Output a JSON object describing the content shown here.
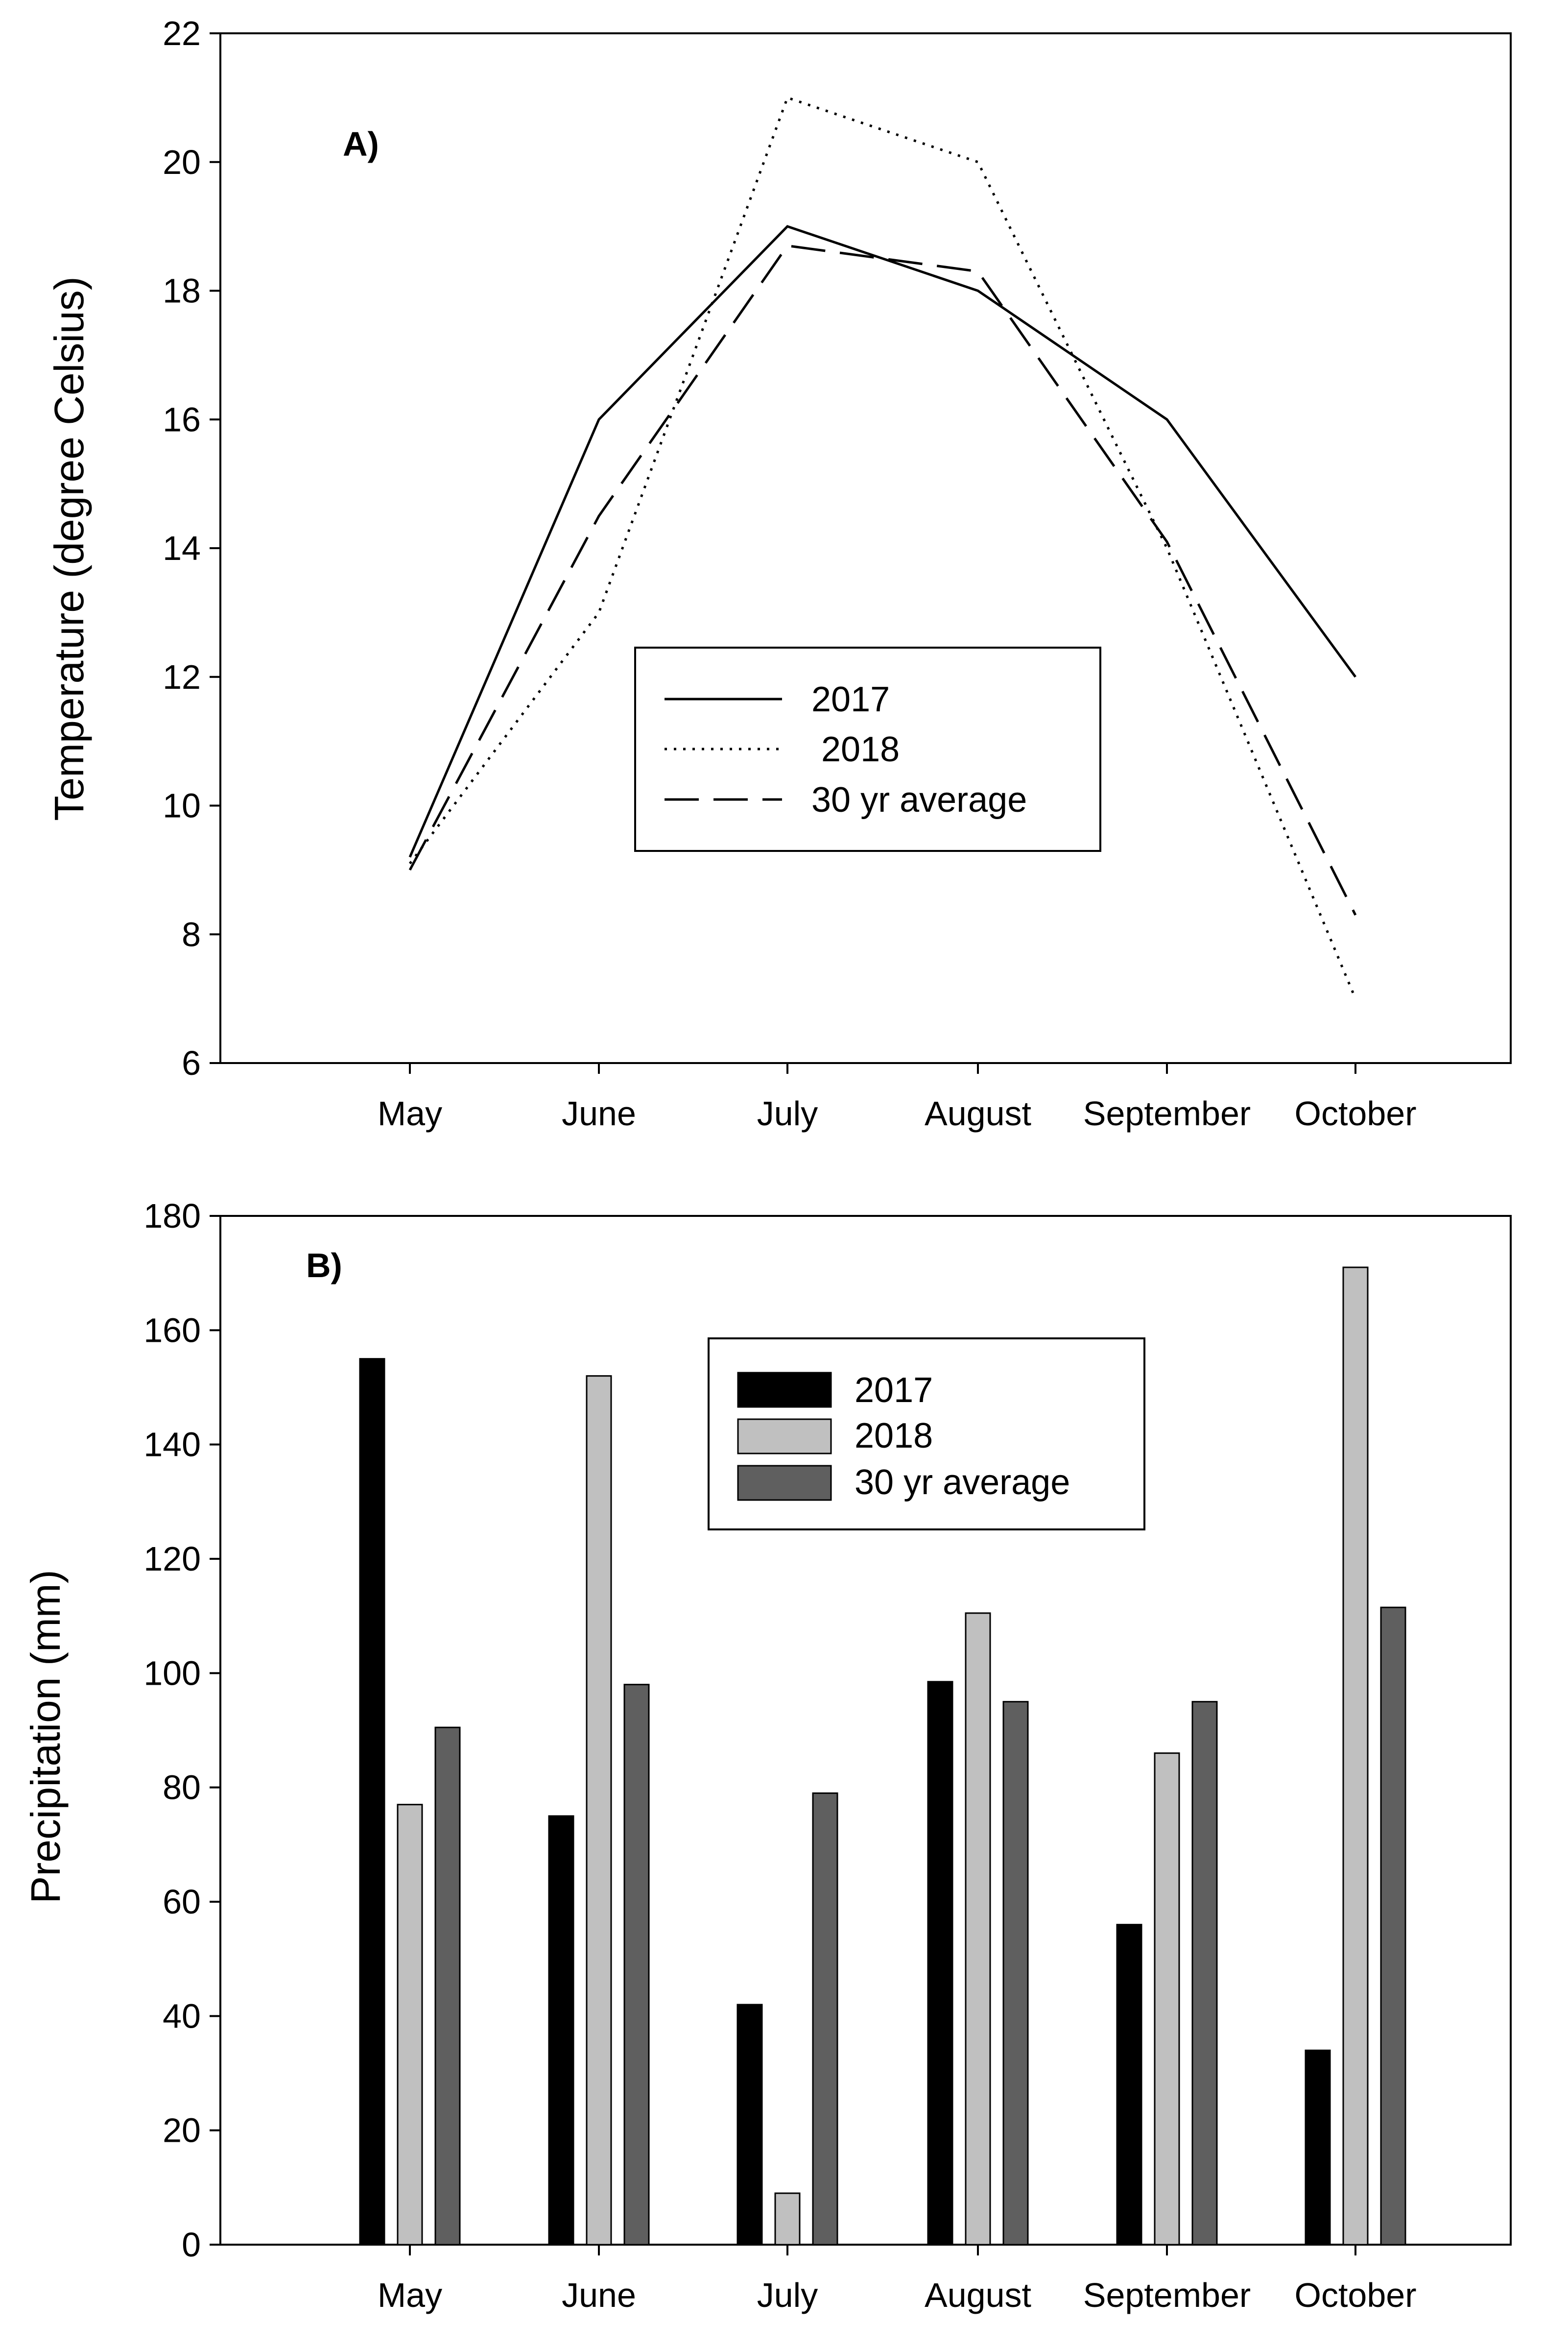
{
  "chart_data": [
    {
      "type": "line",
      "panel_label": "A)",
      "ylabel": "Temperature (degree Celsius)",
      "xlabel": "",
      "categories": [
        "May",
        "June",
        "July",
        "August",
        "September",
        "October"
      ],
      "ylim": [
        6,
        22
      ],
      "yticks": [
        6,
        8,
        10,
        12,
        14,
        16,
        18,
        20,
        22
      ],
      "grid": false,
      "legend_position": "center",
      "series": [
        {
          "name": "2017",
          "style": "solid",
          "values": [
            9.2,
            16,
            19,
            18,
            16,
            12
          ]
        },
        {
          "name": " 2018",
          "style": "dotted",
          "values": [
            9.1,
            13,
            21,
            20,
            14,
            7
          ]
        },
        {
          "name": "30 yr average",
          "style": "dashed",
          "values": [
            9,
            14.5,
            18.7,
            18.3,
            14.1,
            8.3
          ]
        }
      ]
    },
    {
      "type": "bar",
      "panel_label": "B)",
      "ylabel": "Precipitation (mm)",
      "xlabel": "",
      "categories": [
        "May",
        "June",
        "July",
        "August",
        "September",
        "October"
      ],
      "ylim": [
        0,
        180
      ],
      "yticks": [
        0,
        20,
        40,
        60,
        80,
        100,
        120,
        140,
        160,
        180
      ],
      "grid": false,
      "legend_position": "top-center",
      "series": [
        {
          "name": "2017",
          "color": "#000000",
          "values": [
            155,
            75,
            42,
            98.5,
            56,
            34
          ]
        },
        {
          "name": "2018",
          "color": "#c0c0c0",
          "values": [
            77,
            152,
            9,
            110.5,
            86,
            171
          ]
        },
        {
          "name": "30 yr average",
          "color": "#5f5f5f",
          "values": [
            90.5,
            98,
            79,
            95,
            95,
            111.5
          ]
        }
      ]
    }
  ]
}
